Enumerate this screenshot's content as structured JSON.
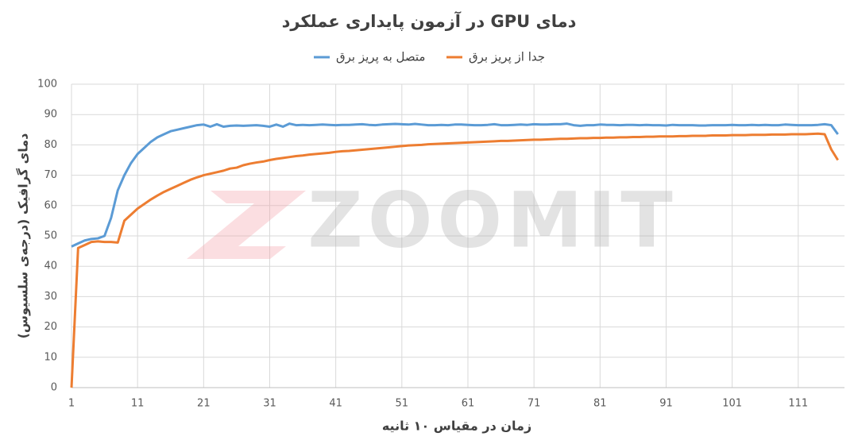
{
  "chart_data": {
    "type": "line",
    "title": "دمای GPU در آزمون پایداری عملکرد",
    "x_label": "زمان در مقیاس ۱۰ ثانیه",
    "y_label": "دمای گرافیک (درجه‌ی سلسیوس)",
    "watermark": "ZOOMIT",
    "grid": true,
    "legend": "top",
    "xlim": [
      1,
      118
    ],
    "xticks": [
      1,
      11,
      21,
      31,
      41,
      51,
      61,
      71,
      81,
      91,
      101,
      111
    ],
    "ylim": [
      0,
      100
    ],
    "yticks": [
      0,
      10,
      20,
      30,
      40,
      50,
      60,
      70,
      80,
      90,
      100
    ],
    "x": [
      1,
      2,
      3,
      4,
      5,
      6,
      7,
      8,
      9,
      10,
      11,
      12,
      13,
      14,
      15,
      16,
      17,
      18,
      19,
      20,
      21,
      22,
      23,
      24,
      25,
      26,
      27,
      28,
      29,
      30,
      31,
      32,
      33,
      34,
      35,
      36,
      37,
      38,
      39,
      40,
      41,
      42,
      43,
      44,
      45,
      46,
      47,
      48,
      49,
      50,
      51,
      52,
      53,
      54,
      55,
      56,
      57,
      58,
      59,
      60,
      61,
      62,
      63,
      64,
      65,
      66,
      67,
      68,
      69,
      70,
      71,
      72,
      73,
      74,
      75,
      76,
      77,
      78,
      79,
      80,
      81,
      82,
      83,
      84,
      85,
      86,
      87,
      88,
      89,
      90,
      91,
      92,
      93,
      94,
      95,
      96,
      97,
      98,
      99,
      100,
      101,
      102,
      103,
      104,
      105,
      106,
      107,
      108,
      109,
      110,
      111,
      112,
      113,
      114,
      115,
      116,
      117
    ],
    "series": [
      {
        "name": "متصل به پریز برق",
        "color": "#5b9bd5",
        "values": [
          46.5,
          47.5,
          48.5,
          49,
          49.2,
          50,
          56,
          65,
          70,
          74,
          77,
          79,
          81,
          82.5,
          83.5,
          84.5,
          85,
          85.5,
          86,
          86.5,
          86.7,
          86,
          86.8,
          86,
          86.3,
          86.4,
          86.3,
          86.4,
          86.5,
          86.3,
          86,
          86.7,
          86,
          87,
          86.5,
          86.6,
          86.5,
          86.6,
          86.7,
          86.6,
          86.5,
          86.6,
          86.6,
          86.7,
          86.8,
          86.6,
          86.5,
          86.7,
          86.8,
          86.9,
          86.8,
          86.7,
          86.9,
          86.7,
          86.5,
          86.5,
          86.6,
          86.5,
          86.7,
          86.7,
          86.6,
          86.5,
          86.5,
          86.6,
          86.8,
          86.5,
          86.5,
          86.6,
          86.7,
          86.6,
          86.8,
          86.7,
          86.7,
          86.8,
          86.8,
          87,
          86.5,
          86.3,
          86.5,
          86.5,
          86.7,
          86.6,
          86.6,
          86.5,
          86.6,
          86.6,
          86.5,
          86.6,
          86.5,
          86.5,
          86.4,
          86.6,
          86.5,
          86.5,
          86.5,
          86.4,
          86.4,
          86.5,
          86.5,
          86.5,
          86.6,
          86.5,
          86.5,
          86.6,
          86.5,
          86.6,
          86.5,
          86.5,
          86.7,
          86.6,
          86.5,
          86.5,
          86.5,
          86.6,
          86.8,
          86.5,
          83.5
        ]
      },
      {
        "name": "جدا از پریز برق",
        "color": "#ed7d31",
        "values": [
          0,
          46,
          47,
          48,
          48.2,
          48,
          48,
          47.8,
          55,
          57,
          59,
          60.5,
          62,
          63.3,
          64.5,
          65.5,
          66.5,
          67.5,
          68.5,
          69.3,
          70,
          70.5,
          71,
          71.5,
          72.2,
          72.5,
          73.3,
          73.8,
          74.2,
          74.5,
          75,
          75.4,
          75.7,
          76,
          76.3,
          76.5,
          76.8,
          77,
          77.2,
          77.4,
          77.7,
          77.9,
          78,
          78.2,
          78.4,
          78.6,
          78.8,
          79,
          79.2,
          79.4,
          79.6,
          79.8,
          79.9,
          80,
          80.2,
          80.3,
          80.4,
          80.5,
          80.6,
          80.7,
          80.8,
          80.9,
          81,
          81.1,
          81.2,
          81.3,
          81.3,
          81.4,
          81.5,
          81.6,
          81.7,
          81.7,
          81.8,
          81.9,
          82,
          82,
          82.1,
          82.2,
          82.2,
          82.3,
          82.3,
          82.4,
          82.4,
          82.5,
          82.5,
          82.6,
          82.6,
          82.7,
          82.7,
          82.8,
          82.8,
          82.8,
          82.9,
          82.9,
          83,
          83,
          83,
          83.1,
          83.1,
          83.1,
          83.2,
          83.2,
          83.2,
          83.3,
          83.3,
          83.3,
          83.4,
          83.4,
          83.4,
          83.5,
          83.5,
          83.5,
          83.6,
          83.7,
          83.5,
          78.5,
          75
        ]
      }
    ]
  }
}
